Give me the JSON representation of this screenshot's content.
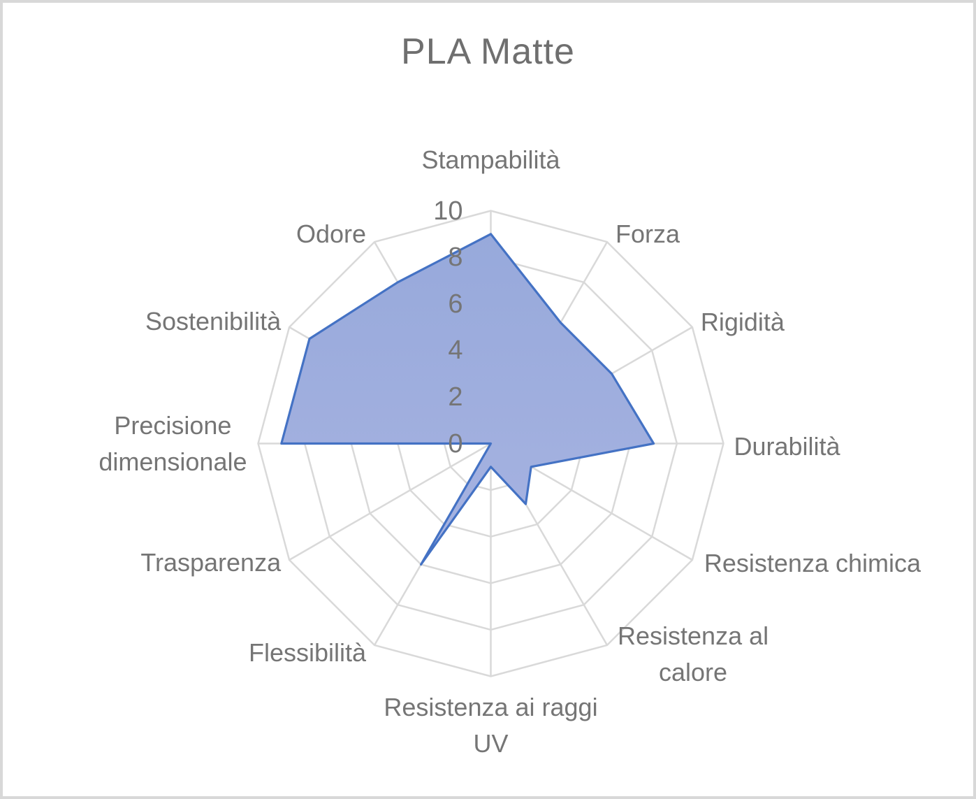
{
  "title": "PLA Matte",
  "chart_data": {
    "type": "radar",
    "title": "PLA Matte",
    "categories": [
      "Stampabilità",
      "Forza",
      "Rigidità",
      "Durabilità",
      "Resistenza chimica",
      "Resistenza al calore",
      "Resistenza ai raggi UV",
      "Flessibilità",
      "Trasparenza",
      "Precisione dimensionale",
      "Sostenibilità",
      "Odore"
    ],
    "series": [
      {
        "name": "PLA Matte",
        "values": [
          9,
          6,
          6,
          7,
          2,
          3,
          1,
          6,
          0,
          9,
          9,
          8
        ]
      }
    ],
    "ticks": [
      0,
      2,
      4,
      6,
      8,
      10
    ],
    "rlim": [
      0,
      10
    ],
    "grid": true,
    "legend_position": "none",
    "colors": {
      "fill_top": "#97a9db",
      "fill_bottom": "#a7b3e1",
      "stroke": "#4472c4",
      "grid": "#d9d9d9",
      "text": "#757575",
      "title_text": "#6f6f6f"
    }
  }
}
